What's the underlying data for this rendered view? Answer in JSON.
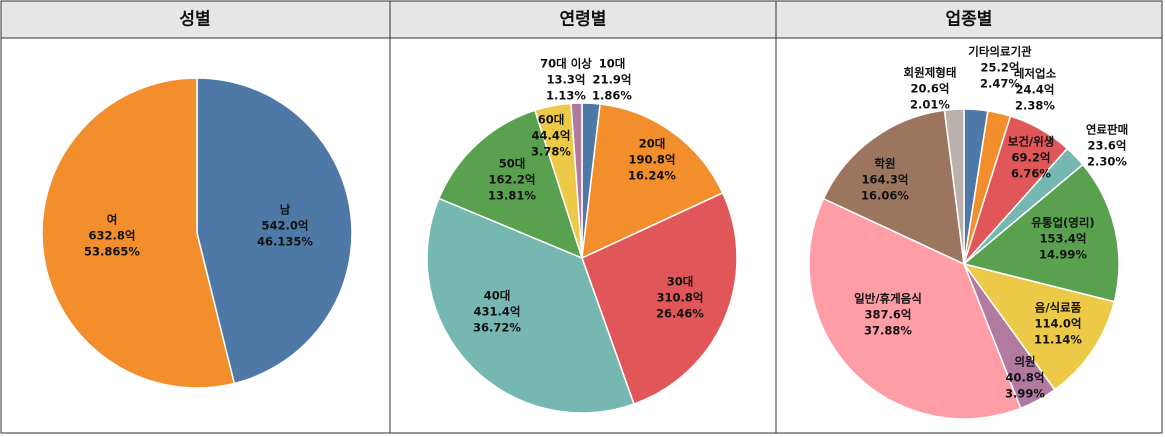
{
  "chart_data": [
    {
      "type": "pie",
      "title": "성별",
      "categories": [
        "남",
        "여"
      ],
      "values": [
        542.0,
        632.8
      ],
      "value_labels": [
        "542.0억",
        "632.8억"
      ],
      "percent_labels": [
        "46.135%",
        "53.865%"
      ],
      "colors": [
        "#4e79a7",
        "#f28e2b"
      ]
    },
    {
      "type": "pie",
      "title": "연령별",
      "categories": [
        "10대",
        "20대",
        "30대",
        "40대",
        "50대",
        "60대",
        "70대 이상"
      ],
      "values": [
        21.9,
        190.8,
        310.8,
        431.4,
        162.2,
        44.4,
        13.3
      ],
      "value_labels": [
        "21.9억",
        "190.8억",
        "310.8억",
        "431.4억",
        "162.2억",
        "44.4억",
        "13.3억"
      ],
      "percent_labels": [
        "1.86%",
        "16.24%",
        "26.46%",
        "36.72%",
        "13.81%",
        "3.78%",
        "1.13%"
      ],
      "colors": [
        "#4e79a7",
        "#f28e2b",
        "#e15759",
        "#76b7b2",
        "#59a14f",
        "#edc948",
        "#b07aa1"
      ]
    },
    {
      "type": "pie",
      "title": "업종별",
      "categories": [
        "기타의료기관",
        "레저업소",
        "보건/위생",
        "연료판매",
        "유통업(영리)",
        "음/식료품",
        "의원",
        "일반/휴게음식",
        "학원",
        "회원제형태"
      ],
      "values": [
        25.2,
        24.4,
        69.2,
        23.6,
        153.4,
        114.0,
        40.8,
        387.6,
        164.3,
        20.6
      ],
      "value_labels": [
        "25.2억",
        "24.4억",
        "69.2억",
        "23.6억",
        "153.4억",
        "114.0억",
        "40.8억",
        "387.6억",
        "164.3억",
        "20.6억"
      ],
      "percent_labels": [
        "2.47%",
        "2.38%",
        "6.76%",
        "2.30%",
        "14.99%",
        "11.14%",
        "3.99%",
        "37.88%",
        "16.06%",
        "2.01%"
      ],
      "colors": [
        "#4e79a7",
        "#f28e2b",
        "#e15759",
        "#76b7b2",
        "#59a14f",
        "#edc948",
        "#b07aa1",
        "#ff9da7",
        "#9c755f",
        "#bab0ac"
      ]
    }
  ]
}
